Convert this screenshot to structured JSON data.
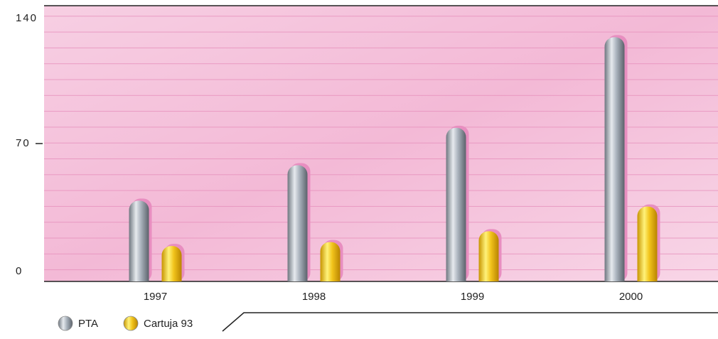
{
  "chart_data": {
    "type": "bar",
    "categories": [
      "1997",
      "1998",
      "1999",
      "2000"
    ],
    "series": [
      {
        "name": "PTA",
        "color": "#a9b2bc",
        "values": [
          41,
          59,
          78,
          124
        ]
      },
      {
        "name": "Cartuja 93",
        "color": "#f2c41c",
        "values": [
          18,
          20,
          25.5,
          38
        ]
      }
    ],
    "ylim": [
      0,
      140
    ],
    "yticks": [
      0,
      70,
      140
    ]
  }
}
